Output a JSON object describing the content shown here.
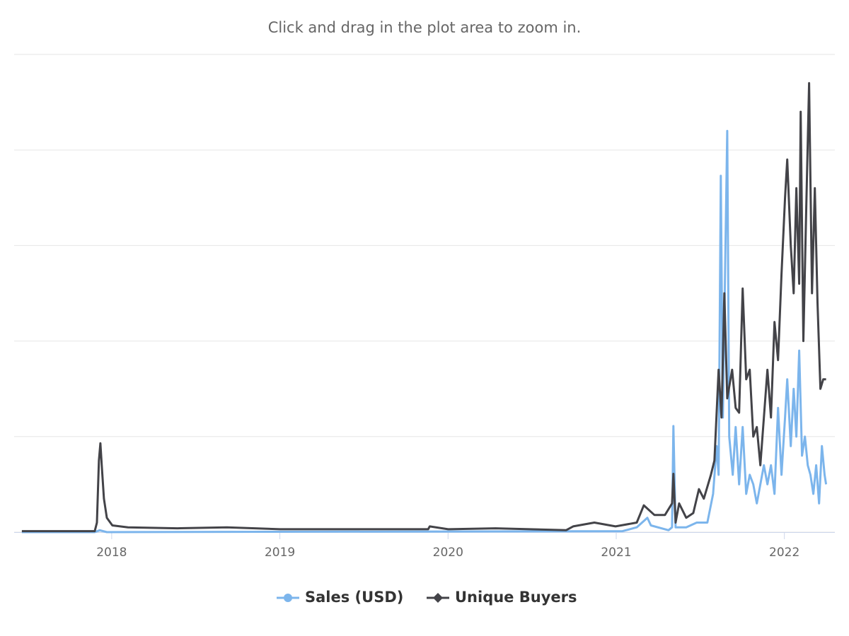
{
  "chart_data": {
    "type": "line",
    "subtitle": "Click and drag in the plot area to zoom in.",
    "xlim": [
      2017.42,
      2022.3
    ],
    "xticks": [
      2018,
      2019,
      2020,
      2021,
      2022
    ],
    "ylim": [
      0,
      5
    ],
    "yticks": [
      0,
      1,
      2,
      3,
      4,
      5
    ],
    "y_tick_labels_shown": false,
    "grid": true,
    "legend": "bottom",
    "series": [
      {
        "name": "Sales (USD)",
        "color": "#7cb5ec",
        "x": [
          2017.466,
          2017.899,
          2017.929,
          2017.971,
          2021.038,
          2021.122,
          2021.185,
          2021.206,
          2021.311,
          2021.332,
          2021.34,
          2021.353,
          2021.416,
          2021.479,
          2021.542,
          2021.576,
          2021.597,
          2021.609,
          2021.622,
          2021.634,
          2021.647,
          2021.66,
          2021.672,
          2021.693,
          2021.71,
          2021.731,
          2021.752,
          2021.773,
          2021.794,
          2021.815,
          2021.836,
          2021.857,
          2021.878,
          2021.899,
          2021.92,
          2021.941,
          2021.962,
          2021.983,
          2022.004,
          2022.017,
          2022.038,
          2022.055,
          2022.071,
          2022.088,
          2022.105,
          2022.122,
          2022.139,
          2022.155,
          2022.172,
          2022.189,
          2022.206,
          2022.223,
          2022.239,
          2022.248
        ],
        "values": [
          0,
          0,
          0.02,
          0,
          0.01,
          0.05,
          0.15,
          0.07,
          0.02,
          0.05,
          1.11,
          0.05,
          0.05,
          0.1,
          0.1,
          0.4,
          0.9,
          0.6,
          3.73,
          1.2,
          2.7,
          4.2,
          1.0,
          0.6,
          1.1,
          0.5,
          1.1,
          0.4,
          0.6,
          0.5,
          0.3,
          0.5,
          0.7,
          0.5,
          0.7,
          0.4,
          1.3,
          0.6,
          1.2,
          1.6,
          0.9,
          1.5,
          1.0,
          1.9,
          0.8,
          1.0,
          0.7,
          0.6,
          0.4,
          0.7,
          0.3,
          0.9,
          0.6,
          0.5
        ]
      },
      {
        "name": "Unique Buyers",
        "color": "#434348",
        "x": [
          2017.466,
          2017.899,
          2017.912,
          2017.924,
          2017.933,
          2017.941,
          2017.954,
          2017.971,
          2018.004,
          2018.097,
          2018.391,
          2018.685,
          2019.0,
          2019.441,
          2019.882,
          2019.891,
          2020.0,
          2020.282,
          2020.702,
          2020.744,
          2020.87,
          2020.996,
          2021.122,
          2021.164,
          2021.227,
          2021.29,
          2021.332,
          2021.34,
          2021.353,
          2021.374,
          2021.416,
          2021.458,
          2021.492,
          2021.521,
          2021.563,
          2021.584,
          2021.609,
          2021.626,
          2021.643,
          2021.66,
          2021.689,
          2021.71,
          2021.731,
          2021.752,
          2021.773,
          2021.794,
          2021.815,
          2021.836,
          2021.857,
          2021.878,
          2021.899,
          2021.92,
          2021.941,
          2021.962,
          2021.983,
          2022.004,
          2022.017,
          2022.038,
          2022.055,
          2022.071,
          2022.088,
          2022.097,
          2022.113,
          2022.13,
          2022.147,
          2022.164,
          2022.181,
          2022.197,
          2022.214,
          2022.231,
          2022.248
        ],
        "values": [
          0.01,
          0.01,
          0.1,
          0.75,
          0.93,
          0.7,
          0.35,
          0.15,
          0.07,
          0.05,
          0.04,
          0.05,
          0.03,
          0.03,
          0.03,
          0.06,
          0.03,
          0.04,
          0.02,
          0.06,
          0.1,
          0.06,
          0.1,
          0.28,
          0.18,
          0.18,
          0.3,
          0.61,
          0.1,
          0.3,
          0.15,
          0.2,
          0.45,
          0.35,
          0.6,
          0.75,
          1.7,
          1.2,
          2.5,
          1.4,
          1.7,
          1.3,
          1.25,
          2.55,
          1.6,
          1.7,
          1.0,
          1.1,
          0.7,
          1.2,
          1.7,
          1.2,
          2.2,
          1.8,
          2.7,
          3.5,
          3.9,
          3.0,
          2.5,
          3.6,
          2.6,
          4.4,
          2.0,
          3.4,
          4.7,
          2.5,
          3.6,
          2.4,
          1.5,
          1.6,
          1.6
        ]
      }
    ]
  }
}
